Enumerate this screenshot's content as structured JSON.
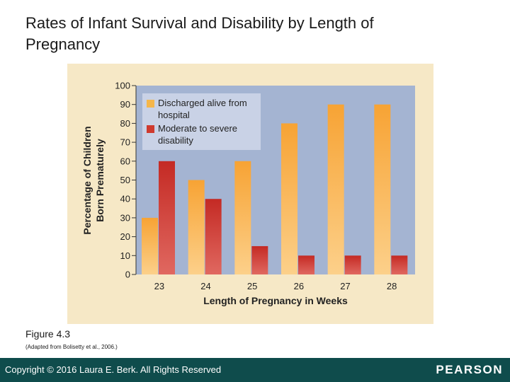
{
  "slide": {
    "title": "Rates of Infant Survival and Disability by Length of Pregnancy",
    "figure_label": "Figure 4.3",
    "source": "(Adapted from Bolisetty et al., 2006.)",
    "copyright": "Copyright © 2016 Laura E. Berk. All Rights Reserved",
    "logo": "PEARSON"
  },
  "colors": {
    "panel": "#f6e8c6",
    "plot": "#a4b4d2",
    "legend": "#c9d2e6",
    "discharged": "#f5b64a",
    "disability": "#cf3a2e",
    "footer": "#0f4c4c"
  },
  "chart_data": {
    "type": "bar",
    "title": "",
    "xlabel": "Length of Pregnancy in Weeks",
    "ylabel_lines": [
      "Percentage of Children",
      "Born Prematurely"
    ],
    "categories": [
      "23",
      "24",
      "25",
      "26",
      "27",
      "28"
    ],
    "y_ticks": [
      "0",
      "10",
      "20",
      "30",
      "40",
      "50",
      "60",
      "70",
      "80",
      "90",
      "100"
    ],
    "ylim": [
      0,
      100
    ],
    "grid": false,
    "legend_position": "top-left",
    "series": [
      {
        "name_lines": [
          "Discharged alive from",
          "hospital"
        ],
        "values": [
          30,
          50,
          60,
          80,
          90,
          90
        ]
      },
      {
        "name_lines": [
          "Moderate to severe",
          "disability"
        ],
        "values": [
          60,
          40,
          15,
          10,
          10,
          10
        ]
      }
    ]
  }
}
